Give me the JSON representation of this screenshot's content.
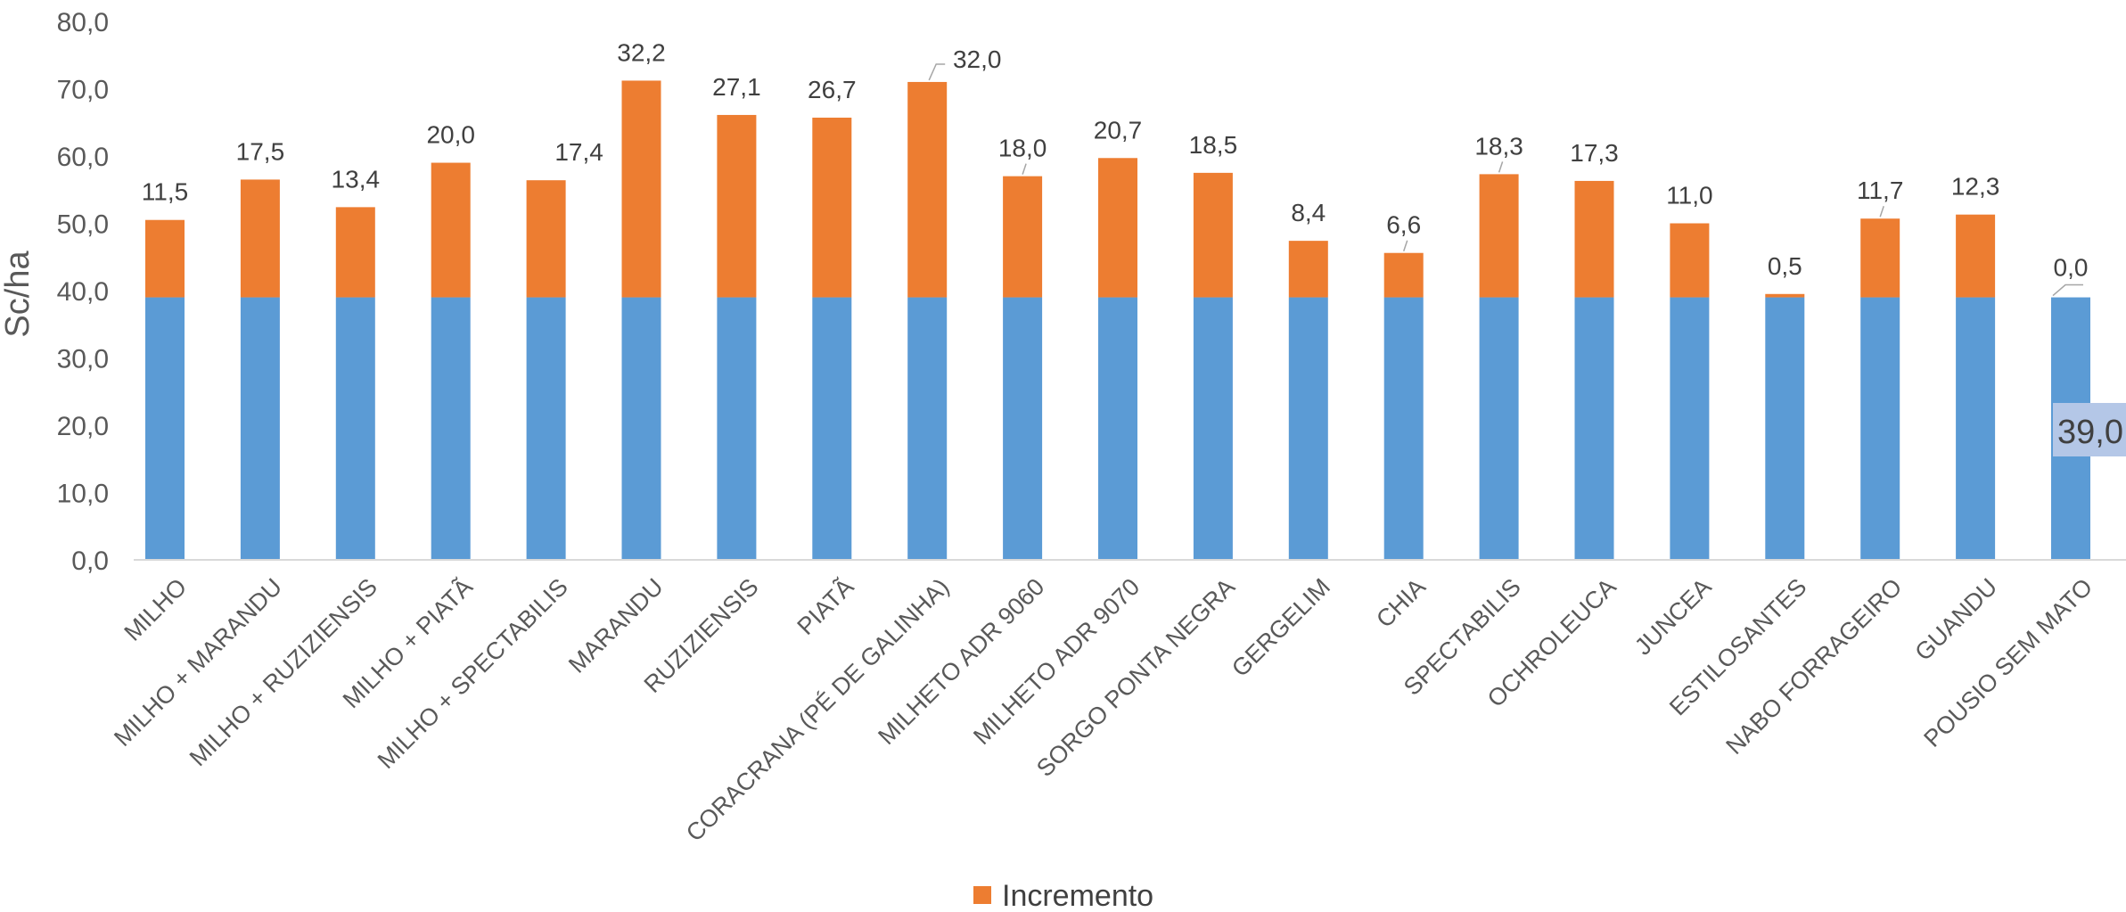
{
  "chart_data": {
    "type": "bar",
    "stacked": true,
    "title": "",
    "xlabel": "",
    "ylabel": "Sc/ha",
    "ylim": [
      0,
      80
    ],
    "ytick_step": 10,
    "ytick_labels": [
      "0,0",
      "10,0",
      "20,0",
      "30,0",
      "40,0",
      "50,0",
      "60,0",
      "70,0",
      "80,0"
    ],
    "grid": false,
    "legend_position": "bottom",
    "categories": [
      "MILHO",
      "MILHO + MARANDU",
      "MILHO + RUZIZIENSIS",
      "MILHO + PIATÃ",
      "MILHO + SPECTABILIS",
      "MARANDU",
      "RUZIZIENSIS",
      "PIATÃ",
      "CORACRANA (PÉ DE GALINHA)",
      "MILHETO ADR 9060",
      "MILHETO ADR 9070",
      "SORGO PONTA NEGRA",
      "GERGELIM",
      "CHIA",
      "SPECTABILIS",
      "OCHROLEUCA",
      "JUNCEA",
      "ESTILOSANTES",
      "NABO FORRAGEIRO",
      "GUANDU",
      "POUSIO SEM MATO"
    ],
    "series": [
      {
        "values": [
          39,
          39,
          39,
          39,
          39,
          39,
          39,
          39,
          39,
          39,
          39,
          39,
          39,
          39,
          39,
          39,
          39,
          39,
          39,
          39,
          39
        ],
        "color": "#5b9bd5"
      },
      {
        "name": "Incremento",
        "values": [
          11.5,
          17.5,
          13.4,
          20.0,
          17.4,
          32.2,
          27.1,
          26.7,
          32.0,
          18.0,
          20.7,
          18.5,
          8.4,
          6.6,
          18.3,
          17.3,
          11.0,
          0.5,
          11.7,
          12.3,
          0.0
        ],
        "color": "#ed7d31"
      }
    ],
    "data_labels": [
      "11,5",
      "17,5",
      "13,4",
      "20,0",
      "17,4",
      "32,2",
      "27,1",
      "26,7",
      "32,0",
      "18,0",
      "20,7",
      "18,5",
      "8,4",
      "6,6",
      "18,3",
      "17,3",
      "11,0",
      "0,5",
      "11,7",
      "12,3",
      "0,0"
    ],
    "base_callout": "39,0",
    "annotations": [
      {
        "text": "39,0",
        "category": "POUSIO SEM MATO",
        "series": 0
      }
    ]
  }
}
